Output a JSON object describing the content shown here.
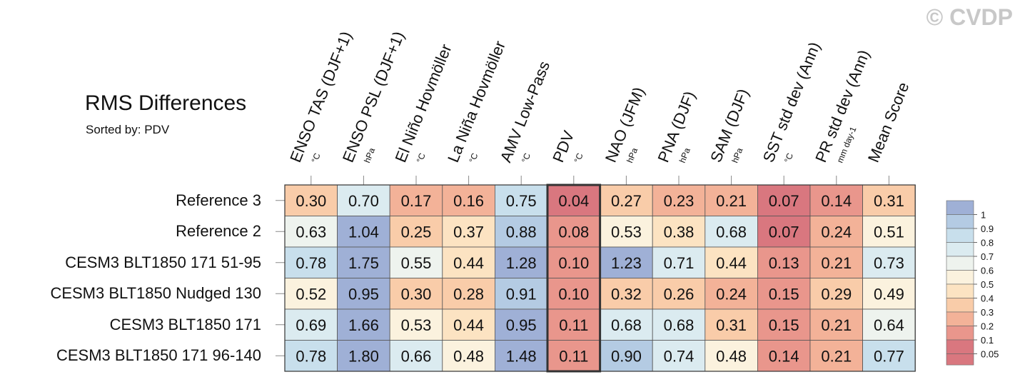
{
  "watermark": "© CVDP",
  "chart_data": {
    "type": "heatmap",
    "title": "RMS Differences",
    "subtitle": "Sorted by: PDV",
    "columns": [
      {
        "name": "ENSO TAS (DJF+1)",
        "unit": "°C"
      },
      {
        "name": "ENSO PSL (DJF+1)",
        "unit": "hPa"
      },
      {
        "name": "El Niño Hovmöller",
        "unit": "°C"
      },
      {
        "name": "La Niña Hovmöller",
        "unit": "°C"
      },
      {
        "name": "AMV Low-Pass",
        "unit": "°C"
      },
      {
        "name": "PDV",
        "unit": "°C"
      },
      {
        "name": "NAO (JFM)",
        "unit": "hPa"
      },
      {
        "name": "PNA (DJF)",
        "unit": "hPa"
      },
      {
        "name": "SAM (DJF)",
        "unit": "hPa"
      },
      {
        "name": "SST std dev (Ann)",
        "unit": "°C"
      },
      {
        "name": "PR std dev (Ann)",
        "unit": "mm day-1"
      },
      {
        "name": "Mean Score",
        "unit": ""
      }
    ],
    "rows": [
      "Reference 3",
      "Reference 2",
      "CESM3 BLT1850 171 51-95",
      "CESM3 BLT1850 Nudged 130",
      "CESM3 BLT1850 171",
      "CESM3 BLT1850 171 96-140"
    ],
    "values": [
      [
        "0.30",
        "0.70",
        "0.17",
        "0.16",
        "0.75",
        "0.04",
        "0.27",
        "0.23",
        "0.21",
        "0.07",
        "0.14",
        "0.31"
      ],
      [
        "0.63",
        "1.04",
        "0.25",
        "0.37",
        "0.88",
        "0.08",
        "0.53",
        "0.38",
        "0.68",
        "0.07",
        "0.24",
        "0.51"
      ],
      [
        "0.78",
        "1.75",
        "0.55",
        "0.44",
        "1.28",
        "0.10",
        "1.23",
        "0.71",
        "0.44",
        "0.13",
        "0.21",
        "0.73"
      ],
      [
        "0.52",
        "0.95",
        "0.30",
        "0.28",
        "0.91",
        "0.10",
        "0.32",
        "0.26",
        "0.24",
        "0.15",
        "0.29",
        "0.49"
      ],
      [
        "0.69",
        "1.66",
        "0.53",
        "0.44",
        "0.95",
        "0.11",
        "0.68",
        "0.68",
        "0.31",
        "0.15",
        "0.21",
        "0.64"
      ],
      [
        "0.78",
        "1.80",
        "0.66",
        "0.48",
        "1.48",
        "0.11",
        "0.90",
        "0.74",
        "0.48",
        "0.14",
        "0.21",
        "0.77"
      ]
    ],
    "highlight_column": "PDV",
    "colorbar": {
      "labels": [
        "1",
        "0.9",
        "0.8",
        "0.7",
        "0.6",
        "0.5",
        "0.4",
        "0.3",
        "0.2",
        "0.1",
        "0.05"
      ],
      "colors": [
        "#9fb0d6",
        "#b4cbe3",
        "#c8dfec",
        "#dbebf0",
        "#eef3ee",
        "#fbf2de",
        "#fce3c2",
        "#f9cca9",
        "#f3b298",
        "#e9968c",
        "#d9777f"
      ]
    }
  }
}
